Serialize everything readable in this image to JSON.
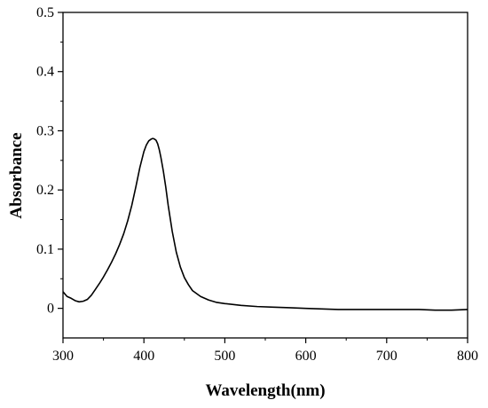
{
  "chart_data": {
    "type": "line",
    "title": "",
    "xlabel": "Wavelength(nm)",
    "ylabel": "Absorbance",
    "xlim": [
      300,
      800
    ],
    "ylim": [
      -0.05,
      0.5
    ],
    "x_ticks": [
      300,
      400,
      500,
      600,
      700,
      800
    ],
    "x_tick_labels": [
      "300",
      "400",
      "500",
      "600",
      "700",
      "800"
    ],
    "y_ticks": [
      0,
      0.1,
      0.2,
      0.3,
      0.4,
      0.5
    ],
    "y_tick_labels": [
      "0",
      "0.1",
      "0.2",
      "0.3",
      "0.4",
      "0.5"
    ],
    "grid": false,
    "legend": "none",
    "line_color": "#000000",
    "series": [
      {
        "x": [
          300,
          305,
          310,
          315,
          320,
          325,
          330,
          335,
          340,
          345,
          350,
          355,
          360,
          365,
          370,
          375,
          380,
          385,
          390,
          395,
          400,
          403,
          406,
          409,
          411,
          413,
          415,
          417,
          419,
          421,
          424,
          427,
          430,
          435,
          440,
          445,
          450,
          455,
          460,
          470,
          480,
          490,
          500,
          520,
          540,
          560,
          580,
          600,
          620,
          640,
          660,
          680,
          700,
          720,
          740,
          760,
          780,
          800
        ],
        "y": [
          0.028,
          0.02,
          0.017,
          0.013,
          0.011,
          0.012,
          0.015,
          0.022,
          0.032,
          0.042,
          0.053,
          0.065,
          0.078,
          0.092,
          0.108,
          0.126,
          0.148,
          0.174,
          0.205,
          0.238,
          0.265,
          0.276,
          0.283,
          0.286,
          0.287,
          0.286,
          0.284,
          0.278,
          0.268,
          0.255,
          0.232,
          0.205,
          0.174,
          0.13,
          0.095,
          0.07,
          0.052,
          0.04,
          0.03,
          0.02,
          0.014,
          0.01,
          0.008,
          0.005,
          0.003,
          0.002,
          0.001,
          0.0,
          -0.001,
          -0.002,
          -0.002,
          -0.002,
          -0.002,
          -0.002,
          -0.002,
          -0.003,
          -0.003,
          -0.002
        ]
      }
    ]
  }
}
